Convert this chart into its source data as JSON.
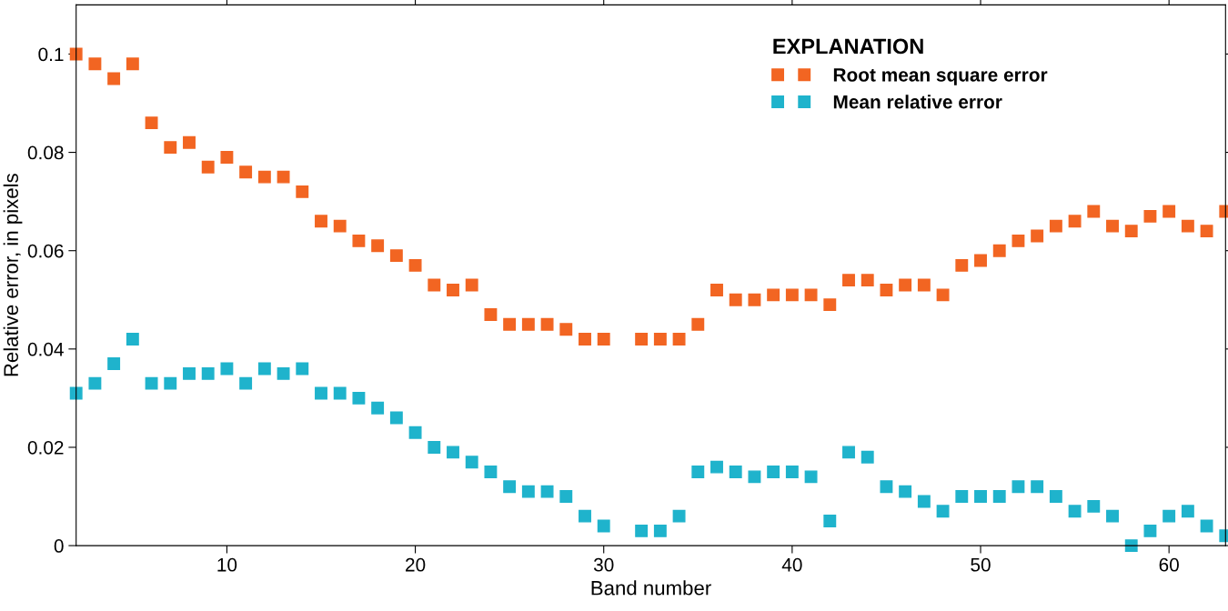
{
  "chart_data": {
    "type": "scatter",
    "xlabel": "Band number",
    "ylabel": "Relative error, in pixels",
    "legend_title": "EXPLANATION",
    "legend": "top right",
    "marker": "square",
    "grid": false,
    "x": [
      2,
      3,
      4,
      5,
      6,
      7,
      8,
      9,
      10,
      11,
      12,
      13,
      14,
      15,
      16,
      17,
      18,
      19,
      20,
      21,
      22,
      23,
      24,
      25,
      26,
      27,
      28,
      29,
      30,
      31,
      32,
      33,
      34,
      35,
      36,
      37,
      38,
      39,
      40,
      41,
      42,
      43,
      44,
      45,
      46,
      47,
      48,
      49,
      50,
      51,
      52,
      53,
      54,
      55,
      56,
      57,
      58,
      59,
      60,
      61,
      62,
      63
    ],
    "series": [
      {
        "name": "Root mean square error",
        "color": "#f26522",
        "values": [
          0.1,
          0.098,
          0.095,
          0.098,
          0.086,
          0.081,
          0.082,
          0.077,
          0.079,
          0.076,
          0.075,
          0.075,
          0.072,
          0.066,
          0.065,
          0.062,
          0.061,
          0.059,
          0.057,
          0.053,
          0.052,
          0.053,
          0.047,
          0.045,
          0.045,
          0.045,
          0.044,
          0.042,
          0.042,
          null,
          0.042,
          0.042,
          0.042,
          0.045,
          0.052,
          0.05,
          0.05,
          0.051,
          0.051,
          0.051,
          0.049,
          0.054,
          0.054,
          0.052,
          0.053,
          0.053,
          0.051,
          0.057,
          0.058,
          0.06,
          0.062,
          0.063,
          0.065,
          0.066,
          0.068,
          0.065,
          0.064,
          0.067,
          0.068,
          0.065,
          0.064,
          0.068
        ]
      },
      {
        "name": "Mean relative error",
        "color": "#1fb3cc",
        "values": [
          0.031,
          0.033,
          0.037,
          0.042,
          0.033,
          0.033,
          0.035,
          0.035,
          0.036,
          0.033,
          0.036,
          0.035,
          0.036,
          0.031,
          0.031,
          0.03,
          0.028,
          0.026,
          0.023,
          0.02,
          0.019,
          0.017,
          0.015,
          0.012,
          0.011,
          0.011,
          0.01,
          0.006,
          0.004,
          null,
          0.003,
          0.003,
          0.006,
          0.015,
          0.016,
          0.015,
          0.014,
          0.015,
          0.015,
          0.014,
          0.005,
          0.019,
          0.018,
          0.012,
          0.011,
          0.009,
          0.007,
          0.01,
          0.01,
          0.01,
          0.012,
          0.012,
          0.01,
          0.007,
          0.008,
          0.006,
          0.0,
          0.003,
          0.006,
          0.007,
          0.004,
          0.002
        ]
      }
    ],
    "xlim": [
      2,
      63
    ],
    "xticks": [
      10,
      20,
      30,
      40,
      50,
      60
    ],
    "ylim": [
      0,
      0.11
    ],
    "yticks": [
      0,
      0.02,
      0.04,
      0.06,
      0.08,
      0.1
    ]
  }
}
